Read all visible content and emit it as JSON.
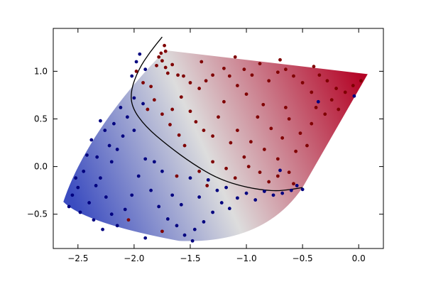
{
  "chart_data": {
    "type": "scatter",
    "title": "",
    "xlabel": "",
    "ylabel": "",
    "xlim": [
      -2.72,
      0.22
    ],
    "ylim": [
      -0.86,
      1.45
    ],
    "x_ticks": [
      -2.5,
      -2.0,
      -1.5,
      -1.0,
      -0.5,
      0.0
    ],
    "x_tick_labels": [
      "−2.5",
      "−2.0",
      "−1.5",
      "−1.0",
      "−0.5",
      "0.0"
    ],
    "y_ticks": [
      -0.5,
      0.0,
      0.5,
      1.0
    ],
    "y_tick_labels": [
      "−0.5",
      "0.0",
      "0.5",
      "1.0"
    ],
    "grid": false,
    "legend": "none",
    "colormap": "coolwarm",
    "colors": {
      "class_red": "#7f0000",
      "class_blue": "#00007f",
      "boundary": "#000000",
      "map_low": "#3b4cc0",
      "map_mid": "#dddddd",
      "map_high": "#b40426"
    },
    "surface": {
      "left_corner": [
        -2.63,
        -0.37
      ],
      "top_left": [
        -1.72,
        1.22
      ],
      "top_right": [
        0.08,
        0.97
      ],
      "right_bottom": [
        -0.5,
        -0.22
      ],
      "bottom": [
        -1.6,
        -0.78
      ]
    },
    "decision_boundary": [
      [
        -1.75,
        1.36
      ],
      [
        -1.86,
        1.2
      ],
      [
        -1.96,
        1.02
      ],
      [
        -2.03,
        0.8
      ],
      [
        -2.02,
        0.62
      ],
      [
        -1.9,
        0.42
      ],
      [
        -1.7,
        0.22
      ],
      [
        -1.48,
        0.03
      ],
      [
        -1.25,
        -0.13
      ],
      [
        -1.0,
        -0.22
      ],
      [
        -0.76,
        -0.26
      ],
      [
        -0.6,
        -0.24
      ],
      [
        -0.5,
        -0.22
      ]
    ],
    "series": [
      {
        "class": "red",
        "points": [
          [
            -1.73,
            1.27
          ],
          [
            -1.72,
            1.21
          ],
          [
            -1.76,
            1.19
          ],
          [
            -1.78,
            1.15
          ],
          [
            -1.75,
            1.11
          ],
          [
            -1.8,
            1.06
          ],
          [
            -1.72,
            1.04
          ],
          [
            -1.66,
            1.07
          ],
          [
            -1.7,
            0.98
          ],
          [
            -1.61,
            0.96
          ],
          [
            -1.56,
            0.95
          ],
          [
            -1.5,
            0.88
          ],
          [
            -1.42,
            0.82
          ],
          [
            -1.36,
            0.9
          ],
          [
            -1.3,
            0.96
          ],
          [
            -1.2,
            1.03
          ],
          [
            -1.15,
            0.95
          ],
          [
            -1.08,
            0.85
          ],
          [
            -1.02,
            1.02
          ],
          [
            -0.95,
            0.96
          ],
          [
            -0.88,
            1.08
          ],
          [
            -0.8,
            0.9
          ],
          [
            -0.72,
            0.99
          ],
          [
            -0.65,
            1.02
          ],
          [
            -0.58,
            0.95
          ],
          [
            -0.5,
            0.88
          ],
          [
            -0.42,
            0.78
          ],
          [
            -0.35,
            0.96
          ],
          [
            -0.28,
            0.9
          ],
          [
            -0.2,
            0.82
          ],
          [
            -0.12,
            0.78
          ],
          [
            -0.05,
            0.85
          ],
          [
            0.02,
            0.9
          ],
          [
            -1.98,
            1.0
          ],
          [
            -1.85,
            0.84
          ],
          [
            -1.82,
            0.7
          ],
          [
            -1.88,
            0.6
          ],
          [
            -1.75,
            0.55
          ],
          [
            -1.68,
            0.44
          ],
          [
            -1.6,
            0.33
          ],
          [
            -1.55,
            0.22
          ],
          [
            -1.5,
            0.58
          ],
          [
            -1.45,
            0.47
          ],
          [
            -1.38,
            0.38
          ],
          [
            -1.3,
            0.32
          ],
          [
            -1.25,
            0.52
          ],
          [
            -1.2,
            0.68
          ],
          [
            -1.14,
            0.25
          ],
          [
            -1.08,
            0.38
          ],
          [
            -1.02,
            0.1
          ],
          [
            -0.96,
            0.26
          ],
          [
            -0.9,
            0.52
          ],
          [
            -0.84,
            0.18
          ],
          [
            -0.78,
            0.4
          ],
          [
            -0.72,
            0.08
          ],
          [
            -0.68,
            0.3
          ],
          [
            -0.62,
            0.5
          ],
          [
            -0.56,
            0.16
          ],
          [
            -0.52,
            0.35
          ],
          [
            -0.46,
            0.22
          ],
          [
            -0.42,
            0.45
          ],
          [
            -0.38,
            0.62
          ],
          [
            -0.3,
            0.55
          ],
          [
            -0.24,
            0.7
          ],
          [
            -0.18,
            0.6
          ],
          [
            -1.42,
            -0.05
          ],
          [
            -1.3,
            0.05
          ],
          [
            -1.18,
            -0.02
          ],
          [
            -1.1,
            -0.12
          ],
          [
            -0.98,
            0.0
          ],
          [
            -0.88,
            -0.06
          ],
          [
            -0.8,
            -0.16
          ],
          [
            -0.72,
            -0.1
          ],
          [
            -0.62,
            -0.06
          ],
          [
            -0.58,
            -0.18
          ],
          [
            -0.85,
            0.65
          ],
          [
            -1.0,
            0.76
          ],
          [
            -1.58,
            0.73
          ],
          [
            -1.66,
            0.6
          ],
          [
            -1.92,
            0.88
          ],
          [
            -0.65,
            0.62
          ],
          [
            -1.35,
            -0.2
          ],
          [
            -1.62,
            -0.1
          ],
          [
            -2.05,
            -0.56
          ],
          [
            -1.75,
            -0.68
          ],
          [
            -1.4,
            1.1
          ],
          [
            -1.1,
            1.15
          ],
          [
            -0.7,
            1.12
          ],
          [
            -0.4,
            1.05
          ]
        ]
      },
      {
        "class": "blue",
        "points": [
          [
            -2.58,
            -0.42
          ],
          [
            -2.55,
            -0.3
          ],
          [
            -2.5,
            -0.22
          ],
          [
            -2.45,
            -0.05
          ],
          [
            -2.42,
            0.12
          ],
          [
            -2.38,
            0.28
          ],
          [
            -2.33,
            0.1
          ],
          [
            -2.3,
            -0.12
          ],
          [
            -2.25,
            -0.32
          ],
          [
            -2.2,
            -0.5
          ],
          [
            -2.15,
            -0.62
          ],
          [
            -2.08,
            -0.45
          ],
          [
            -2.02,
            -0.3
          ],
          [
            -1.96,
            -0.1
          ],
          [
            -1.9,
            0.08
          ],
          [
            -2.1,
            0.32
          ],
          [
            -2.18,
            0.45
          ],
          [
            -2.26,
            0.38
          ],
          [
            -2.3,
            0.48
          ],
          [
            -2.22,
            0.22
          ],
          [
            -2.15,
            0.18
          ],
          [
            -2.06,
            0.52
          ],
          [
            -2.12,
            0.62
          ],
          [
            -2.0,
            0.72
          ],
          [
            -1.92,
            0.66
          ],
          [
            -2.02,
            0.95
          ],
          [
            -1.98,
            1.1
          ],
          [
            -1.95,
            1.18
          ],
          [
            -1.9,
            1.02
          ],
          [
            -2.0,
            0.38
          ],
          [
            -1.85,
            -0.25
          ],
          [
            -1.78,
            -0.42
          ],
          [
            -1.7,
            -0.55
          ],
          [
            -1.62,
            -0.62
          ],
          [
            -1.55,
            -0.72
          ],
          [
            -1.46,
            -0.66
          ],
          [
            -1.38,
            -0.58
          ],
          [
            -1.3,
            -0.48
          ],
          [
            -1.22,
            -0.38
          ],
          [
            -1.15,
            -0.44
          ],
          [
            -1.08,
            -0.33
          ],
          [
            -1.0,
            -0.28
          ],
          [
            -0.92,
            -0.35
          ],
          [
            -0.84,
            -0.26
          ],
          [
            -0.76,
            -0.3
          ],
          [
            -0.68,
            -0.28
          ],
          [
            -0.6,
            -0.25
          ],
          [
            -0.55,
            -0.2
          ],
          [
            -0.5,
            -0.24
          ],
          [
            -2.48,
            -0.48
          ],
          [
            -2.36,
            -0.56
          ],
          [
            -2.28,
            -0.66
          ],
          [
            -1.66,
            -0.3
          ],
          [
            -1.58,
            -0.4
          ],
          [
            -1.5,
            -0.12
          ],
          [
            -1.42,
            -0.32
          ],
          [
            -1.34,
            -0.14
          ],
          [
            -1.26,
            -0.25
          ],
          [
            -1.18,
            -0.22
          ],
          [
            -1.75,
            -0.05
          ],
          [
            -1.82,
            0.05
          ],
          [
            -2.4,
            -0.38
          ],
          [
            -2.52,
            -0.12
          ],
          [
            -2.34,
            -0.2
          ],
          [
            -0.7,
            -0.04
          ],
          [
            -0.36,
            0.68
          ],
          [
            -0.04,
            0.74
          ],
          [
            -1.48,
            -0.78
          ],
          [
            -1.9,
            -0.75
          ],
          [
            -2.2,
            0.05
          ]
        ]
      }
    ]
  }
}
